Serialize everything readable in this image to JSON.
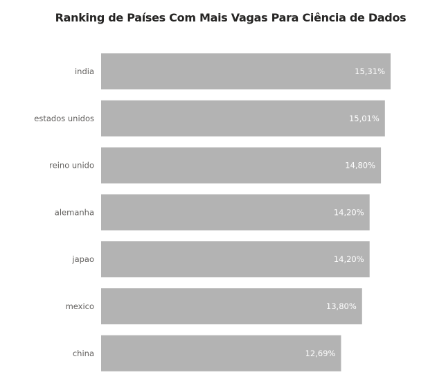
{
  "chart_data": {
    "type": "bar",
    "orientation": "horizontal",
    "title": "Ranking de Países Com Mais Vagas Para Ciência de Dados",
    "categories": [
      "india",
      "estados unidos",
      "reino unido",
      "alemanha",
      "japao",
      "mexico",
      "china"
    ],
    "values": [
      15.31,
      15.01,
      14.8,
      14.2,
      14.2,
      13.8,
      12.69
    ],
    "value_labels": [
      "15,31%",
      "15,01%",
      "14,80%",
      "14,20%",
      "14,20%",
      "13,80%",
      "12,69%"
    ],
    "bar_color": "#b3b3b3",
    "label_color": "#ffffff",
    "xlim": [
      0,
      15.31
    ],
    "grid": false,
    "legend": "none",
    "xlabel": "",
    "ylabel": ""
  }
}
